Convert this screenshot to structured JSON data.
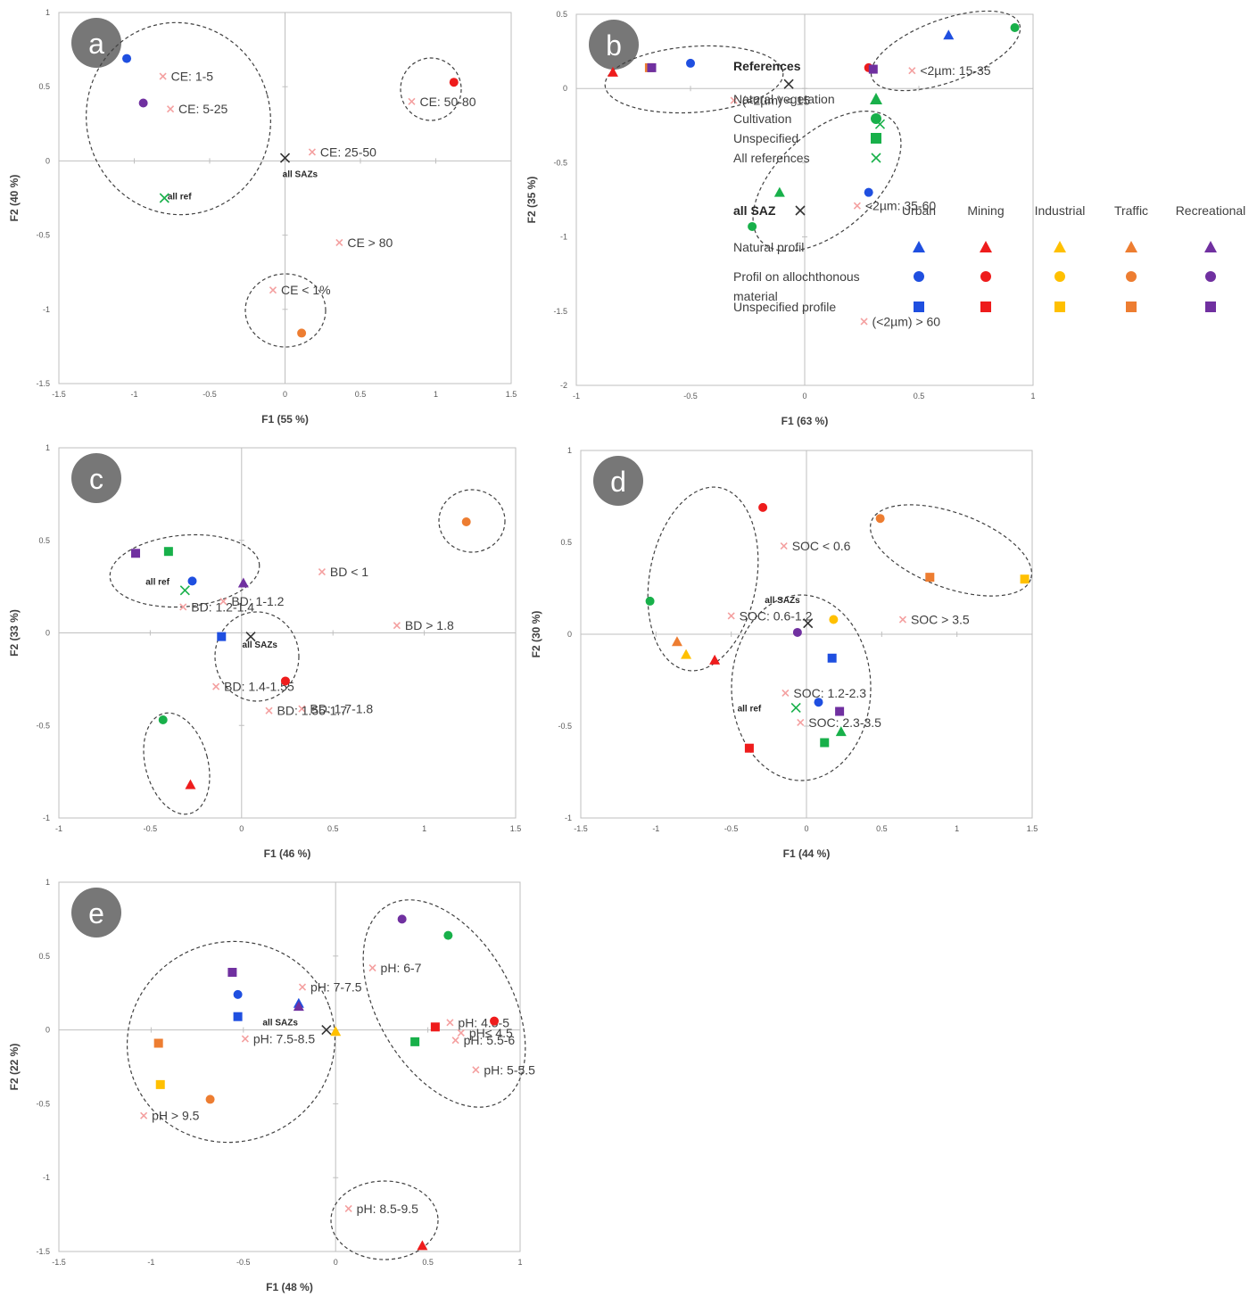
{
  "colors": {
    "urban": "#1f4fe0",
    "mining": "#ee1c1c",
    "industrial": "#ffc000",
    "traffic": "#ed7d31",
    "recreational": "#7030a0",
    "references": "#18b04a",
    "cross": "#f4a0a0",
    "saz": "#333333"
  },
  "chart_data": [
    {
      "panel": "a",
      "type": "scatter",
      "xlabel": "F1 (55 %)",
      "ylabel": "F2 (40 %)",
      "xlim": [
        -1.5,
        1.5
      ],
      "ylim": [
        -1.5,
        1
      ],
      "xticks": [
        "-1.5",
        "-1",
        "-0.5",
        "0",
        "0.5",
        "1",
        "1.5"
      ],
      "yticks": [
        "-1.5",
        "-1",
        "-0.5",
        "0",
        "0.5",
        "1"
      ],
      "points": [
        {
          "x": -1.05,
          "y": 0.69,
          "group": "urban",
          "shape": "circle"
        },
        {
          "x": -0.94,
          "y": 0.39,
          "group": "recreational",
          "shape": "circle"
        },
        {
          "x": 1.12,
          "y": 0.53,
          "group": "mining",
          "shape": "circle"
        },
        {
          "x": 0.11,
          "y": -1.16,
          "group": "traffic",
          "shape": "circle"
        },
        {
          "x": -0.8,
          "y": -0.25,
          "group": "references",
          "shape": "x"
        },
        {
          "x": 0.0,
          "y": 0.02,
          "group": "saz",
          "shape": "x"
        }
      ],
      "labels": [
        {
          "text": "CE: 1-5",
          "x": -0.81,
          "y": 0.57
        },
        {
          "text": "CE: 5-25",
          "x": -0.76,
          "y": 0.35
        },
        {
          "text": "CE: 50-80",
          "x": 0.84,
          "y": 0.4
        },
        {
          "text": "CE: 25-50",
          "x": 0.18,
          "y": 0.06
        },
        {
          "text": "CE > 80",
          "x": 0.36,
          "y": -0.55
        },
        {
          "text": "CE < 1%",
          "x": -0.08,
          "y": -0.87
        }
      ],
      "small_labels": [
        {
          "text": "all ref",
          "x": -0.7,
          "y": -0.26
        },
        {
          "text": "all SAZs",
          "x": 0.1,
          "y": -0.11
        }
      ]
    },
    {
      "panel": "b",
      "type": "scatter",
      "xlabel": "F1 (63 %)",
      "ylabel": "F2 (35 %)",
      "xlim": [
        -1,
        1
      ],
      "ylim": [
        -2,
        0.5
      ],
      "xticks": [
        "-1",
        "-0.5",
        "0",
        "0.5",
        "1"
      ],
      "yticks": [
        "-2",
        "-1.5",
        "-1",
        "-0.5",
        "0",
        "0.5"
      ],
      "points": [
        {
          "x": -0.84,
          "y": 0.11,
          "group": "mining",
          "shape": "triangle"
        },
        {
          "x": -0.68,
          "y": 0.14,
          "group": "traffic",
          "shape": "square"
        },
        {
          "x": -0.67,
          "y": 0.14,
          "group": "recreational",
          "shape": "square"
        },
        {
          "x": -0.5,
          "y": 0.17,
          "group": "urban",
          "shape": "circle"
        },
        {
          "x": 0.63,
          "y": 0.36,
          "group": "urban",
          "shape": "triangle"
        },
        {
          "x": 0.92,
          "y": 0.41,
          "group": "references",
          "shape": "circle"
        },
        {
          "x": 0.28,
          "y": 0.14,
          "group": "mining",
          "shape": "circle"
        },
        {
          "x": 0.3,
          "y": 0.13,
          "group": "recreational",
          "shape": "square"
        },
        {
          "x": 0.28,
          "y": -0.7,
          "group": "urban",
          "shape": "circle"
        },
        {
          "x": -0.11,
          "y": -0.7,
          "group": "references",
          "shape": "triangle"
        },
        {
          "x": -0.23,
          "y": -0.93,
          "group": "references",
          "shape": "circle"
        },
        {
          "x": 0.33,
          "y": -0.24,
          "group": "references",
          "shape": "x"
        },
        {
          "x": -0.07,
          "y": 0.03,
          "group": "saz",
          "shape": "x"
        }
      ],
      "labels": [
        {
          "text": "(<2µm) < 15",
          "x": -0.31,
          "y": -0.08
        },
        {
          "text": "<2µm: 15-35",
          "x": 0.47,
          "y": 0.12
        },
        {
          "text": "<2µm: 35-60",
          "x": 0.23,
          "y": -0.79
        },
        {
          "text": "(<2µm) > 60",
          "x": 0.26,
          "y": -1.57
        }
      ]
    },
    {
      "panel": "c",
      "type": "scatter",
      "xlabel": "F1 (46 %)",
      "ylabel": "F2 (33 %)",
      "xlim": [
        -1,
        1.5
      ],
      "ylim": [
        -1,
        1
      ],
      "xticks": [
        "-1",
        "-0.5",
        "0",
        "0.5",
        "1",
        "1.5"
      ],
      "yticks": [
        "-1",
        "-0.5",
        "0",
        "0.5",
        "1"
      ],
      "points": [
        {
          "x": -0.58,
          "y": 0.43,
          "group": "recreational",
          "shape": "square"
        },
        {
          "x": -0.4,
          "y": 0.44,
          "group": "references",
          "shape": "square"
        },
        {
          "x": -0.27,
          "y": 0.28,
          "group": "urban",
          "shape": "circle"
        },
        {
          "x": 0.01,
          "y": 0.27,
          "group": "recreational",
          "shape": "triangle"
        },
        {
          "x": -0.11,
          "y": -0.02,
          "group": "urban",
          "shape": "square"
        },
        {
          "x": 0.24,
          "y": -0.26,
          "group": "mining",
          "shape": "circle"
        },
        {
          "x": 1.23,
          "y": 0.6,
          "group": "traffic",
          "shape": "circle"
        },
        {
          "x": -0.43,
          "y": -0.47,
          "group": "references",
          "shape": "circle"
        },
        {
          "x": -0.28,
          "y": -0.82,
          "group": "mining",
          "shape": "triangle"
        },
        {
          "x": -0.31,
          "y": 0.23,
          "group": "references",
          "shape": "x"
        },
        {
          "x": 0.05,
          "y": -0.02,
          "group": "saz",
          "shape": "x"
        }
      ],
      "labels": [
        {
          "text": "BD < 1",
          "x": 0.44,
          "y": 0.33
        },
        {
          "text": "BD: 1-1.2",
          "x": -0.1,
          "y": 0.17
        },
        {
          "text": "BD: 1.2-1.4",
          "x": -0.32,
          "y": 0.14
        },
        {
          "text": "BD > 1.8",
          "x": 0.85,
          "y": 0.04
        },
        {
          "text": "BD: 1.4-1.55",
          "x": -0.14,
          "y": -0.29
        },
        {
          "text": "BD: 1.7-1.8",
          "x": 0.33,
          "y": -0.41
        },
        {
          "text": "BD: 1.55-1.7",
          "x": 0.15,
          "y": -0.42
        }
      ],
      "small_labels": [
        {
          "text": "all ref",
          "x": -0.46,
          "y": 0.26
        },
        {
          "text": "all SAZs",
          "x": 0.1,
          "y": -0.08
        }
      ]
    },
    {
      "panel": "d",
      "type": "scatter",
      "xlabel": "F1 (44 %)",
      "ylabel": "F2 (30 %)",
      "xlim": [
        -1.5,
        1.5
      ],
      "ylim": [
        -1,
        1
      ],
      "xticks": [
        "-1.5",
        "-1",
        "-0.5",
        "0",
        "0.5",
        "1",
        "1.5"
      ],
      "yticks": [
        "-1",
        "-0.5",
        "0",
        "0.5",
        "1"
      ],
      "points": [
        {
          "x": -0.29,
          "y": 0.69,
          "group": "mining",
          "shape": "circle"
        },
        {
          "x": -1.04,
          "y": 0.18,
          "group": "references",
          "shape": "circle"
        },
        {
          "x": -0.86,
          "y": -0.04,
          "group": "traffic",
          "shape": "triangle"
        },
        {
          "x": -0.8,
          "y": -0.11,
          "group": "industrial",
          "shape": "triangle"
        },
        {
          "x": -0.61,
          "y": -0.14,
          "group": "mining",
          "shape": "triangle"
        },
        {
          "x": 0.49,
          "y": 0.63,
          "group": "traffic",
          "shape": "circle"
        },
        {
          "x": 0.82,
          "y": 0.31,
          "group": "traffic",
          "shape": "square"
        },
        {
          "x": 1.45,
          "y": 0.3,
          "group": "industrial",
          "shape": "square"
        },
        {
          "x": 0.18,
          "y": 0.08,
          "group": "industrial",
          "shape": "circle"
        },
        {
          "x": -0.06,
          "y": 0.01,
          "group": "recreational",
          "shape": "circle"
        },
        {
          "x": 0.17,
          "y": -0.13,
          "group": "urban",
          "shape": "square"
        },
        {
          "x": 0.08,
          "y": -0.37,
          "group": "urban",
          "shape": "circle"
        },
        {
          "x": 0.22,
          "y": -0.42,
          "group": "recreational",
          "shape": "square"
        },
        {
          "x": 0.23,
          "y": -0.53,
          "group": "references",
          "shape": "triangle"
        },
        {
          "x": 0.12,
          "y": -0.59,
          "group": "references",
          "shape": "square"
        },
        {
          "x": -0.38,
          "y": -0.62,
          "group": "mining",
          "shape": "square"
        },
        {
          "x": -0.07,
          "y": -0.4,
          "group": "references",
          "shape": "x"
        },
        {
          "x": 0.01,
          "y": 0.06,
          "group": "saz",
          "shape": "x"
        }
      ],
      "labels": [
        {
          "text": "SOC < 0.6",
          "x": -0.15,
          "y": 0.48
        },
        {
          "text": "SOC: 0.6-1.2",
          "x": -0.5,
          "y": 0.1
        },
        {
          "text": "SOC > 3.5",
          "x": 0.64,
          "y": 0.08
        },
        {
          "text": "SOC: 1.2-2.3",
          "x": -0.14,
          "y": -0.32
        },
        {
          "text": "SOC: 2.3-3.5",
          "x": -0.04,
          "y": -0.48
        }
      ],
      "small_labels": [
        {
          "text": "all SAZs",
          "x": -0.16,
          "y": 0.17
        },
        {
          "text": "all ref",
          "x": -0.38,
          "y": -0.42
        }
      ]
    },
    {
      "panel": "e",
      "type": "scatter",
      "xlabel": "F1 (48 %)",
      "ylabel": "F2 (22 %)",
      "xlim": [
        -1.5,
        1
      ],
      "ylim": [
        -1.5,
        1
      ],
      "xticks": [
        "-1.5",
        "-1",
        "-0.5",
        "0",
        "0.5",
        "1"
      ],
      "yticks": [
        "-1.5",
        "-1",
        "-0.5",
        "0",
        "0.5",
        "1"
      ],
      "points": [
        {
          "x": 0.36,
          "y": 0.75,
          "group": "recreational",
          "shape": "circle"
        },
        {
          "x": 0.61,
          "y": 0.64,
          "group": "references",
          "shape": "circle"
        },
        {
          "x": 0.86,
          "y": 0.06,
          "group": "mining",
          "shape": "circle"
        },
        {
          "x": 0.54,
          "y": 0.02,
          "group": "mining",
          "shape": "square"
        },
        {
          "x": 0.43,
          "y": -0.08,
          "group": "references",
          "shape": "square"
        },
        {
          "x": -0.56,
          "y": 0.39,
          "group": "recreational",
          "shape": "square"
        },
        {
          "x": -0.53,
          "y": 0.24,
          "group": "urban",
          "shape": "circle"
        },
        {
          "x": -0.53,
          "y": 0.09,
          "group": "urban",
          "shape": "square"
        },
        {
          "x": -0.2,
          "y": 0.18,
          "group": "urban",
          "shape": "triangle"
        },
        {
          "x": -0.2,
          "y": 0.16,
          "group": "recreational",
          "shape": "triangle"
        },
        {
          "x": -0.96,
          "y": -0.09,
          "group": "traffic",
          "shape": "square"
        },
        {
          "x": -0.95,
          "y": -0.37,
          "group": "industrial",
          "shape": "square"
        },
        {
          "x": -0.68,
          "y": -0.47,
          "group": "traffic",
          "shape": "circle"
        },
        {
          "x": 0.0,
          "y": -0.01,
          "group": "industrial",
          "shape": "triangle"
        },
        {
          "x": 0.47,
          "y": -1.46,
          "group": "mining",
          "shape": "triangle"
        },
        {
          "x": -0.05,
          "y": 0.0,
          "group": "saz",
          "shape": "x"
        }
      ],
      "labels": [
        {
          "text": "pH: 6-7",
          "x": 0.2,
          "y": 0.42
        },
        {
          "text": "pH: 7-7.5",
          "x": -0.18,
          "y": 0.29
        },
        {
          "text": "pH: 4.5-5",
          "x": 0.62,
          "y": 0.05
        },
        {
          "text": "pH≤ 4.5",
          "x": 0.68,
          "y": -0.02
        },
        {
          "text": "pH: 5.5-6",
          "x": 0.65,
          "y": -0.07
        },
        {
          "text": "pH: 7.5-8.5",
          "x": -0.49,
          "y": -0.06
        },
        {
          "text": "pH: 5-5.5",
          "x": 0.76,
          "y": -0.27
        },
        {
          "text": "pH > 9.5",
          "x": -1.04,
          "y": -0.58
        },
        {
          "text": "pH: 8.5-9.5",
          "x": 0.07,
          "y": -1.21
        }
      ],
      "small_labels": [
        {
          "text": "all SAZs",
          "x": -0.3,
          "y": 0.03
        }
      ]
    }
  ],
  "legend": {
    "references_title": "References",
    "references_items": [
      {
        "label": "Natural vegetation",
        "shape": "triangle"
      },
      {
        "label": "Cultivation",
        "shape": "circle"
      },
      {
        "label": "Unspecified",
        "shape": "square"
      },
      {
        "label": "All references",
        "shape": "x"
      }
    ],
    "saz_title": "all SAZ",
    "columns": [
      "Urban",
      "Mining",
      "Industrial",
      "Traffic",
      "Recreational"
    ],
    "rows": [
      {
        "label": "Natural profil",
        "shape": "triangle"
      },
      {
        "label": "Profil on allochthonous",
        "label2": "material",
        "shape": "circle"
      },
      {
        "label": "Unspecified profile",
        "shape": "square"
      }
    ]
  }
}
